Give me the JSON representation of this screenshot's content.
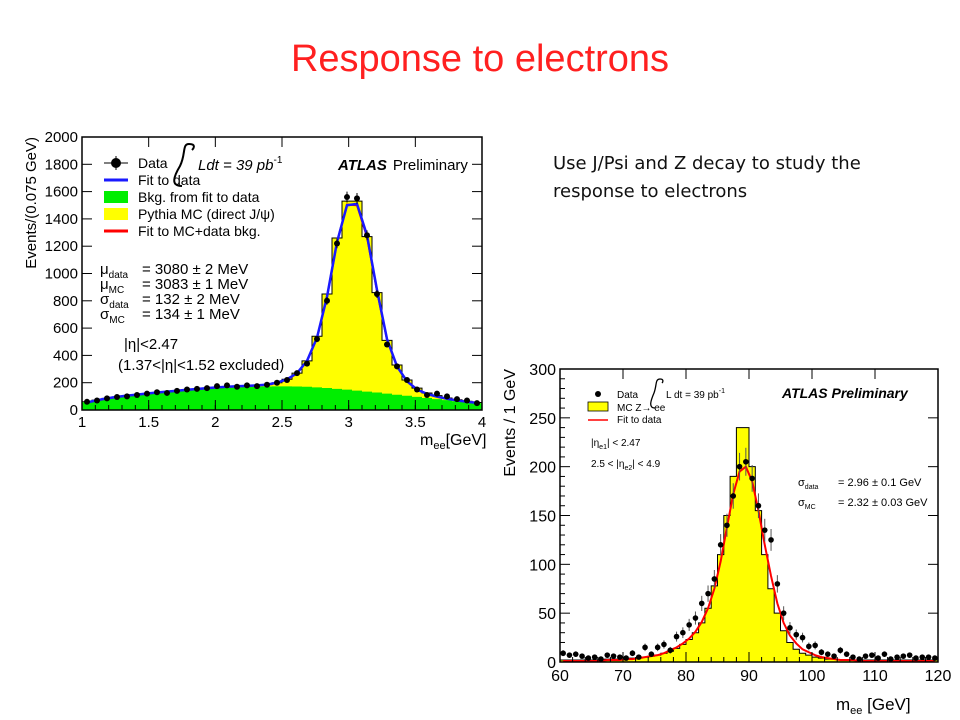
{
  "slide": {
    "title": "Response to electrons",
    "note": "Use J/Psi and Z decay to study the response to electrons"
  },
  "colors": {
    "title": "#ff2020",
    "data_fit": "#1a1aff",
    "background_fill": "#00ee00",
    "mc_fill": "#ffff00",
    "mc_fit": "#ff0000"
  },
  "chart_data": [
    {
      "type": "histogram",
      "experiment": "ATLAS",
      "experiment_tag": "Preliminary",
      "xlabel": "m",
      "xlabel_sub": "ee",
      "xlabel_unit": "[GeV]",
      "ylabel": "Events/(0.075 GeV)",
      "xlim": [
        1,
        4
      ],
      "ylim": [
        0,
        2000
      ],
      "xticks": [
        1,
        1.5,
        2,
        2.5,
        3,
        3.5,
        4
      ],
      "yticks": [
        0,
        200,
        400,
        600,
        800,
        1000,
        1200,
        1400,
        1600,
        1800,
        2000
      ],
      "lumi_text": "Ldt = 39 pb",
      "lumi_sup": "-1",
      "legend_position": "top-left",
      "legend": [
        "Data",
        "Fit to data",
        "Bkg. from fit to data",
        "Pythia MC (direct J/ψ)",
        "Fit to MC+data bkg."
      ],
      "annotations": [
        {
          "sym": "μ",
          "sub": "data",
          "text": "= 3080 ± 2 MeV"
        },
        {
          "sym": "μ",
          "sub": "MC",
          "text": "= 3083 ± 1 MeV"
        },
        {
          "sym": "σ",
          "sub": "data",
          "text": "= 132 ± 2 MeV"
        },
        {
          "sym": "σ",
          "sub": "MC",
          "text": "= 134 ± 1 MeV"
        }
      ],
      "cuts": [
        "|η|<2.47",
        "(1.37<|η|<1.52 excluded)"
      ],
      "x": [
        1.0375,
        1.1125,
        1.1875,
        1.2625,
        1.3375,
        1.4125,
        1.4875,
        1.5625,
        1.6375,
        1.7125,
        1.7875,
        1.8625,
        1.9375,
        2.0125,
        2.0875,
        2.1625,
        2.2375,
        2.3125,
        2.3875,
        2.4625,
        2.5375,
        2.6125,
        2.6875,
        2.7625,
        2.8375,
        2.9125,
        2.9875,
        3.0625,
        3.1375,
        3.2125,
        3.2875,
        3.3625,
        3.4375,
        3.5125,
        3.5875,
        3.6625,
        3.7375,
        3.8125,
        3.8875,
        3.9625
      ],
      "data": [
        60,
        70,
        85,
        95,
        100,
        110,
        120,
        130,
        125,
        140,
        150,
        155,
        160,
        175,
        180,
        170,
        180,
        175,
        185,
        200,
        220,
        270,
        340,
        520,
        800,
        1220,
        1560,
        1550,
        1280,
        850,
        480,
        320,
        220,
        150,
        110,
        120,
        100,
        80,
        70,
        50
      ],
      "fit_data": [
        55,
        72,
        85,
        96,
        105,
        113,
        121,
        128,
        135,
        141,
        148,
        154,
        160,
        166,
        170,
        174,
        177,
        180,
        186,
        200,
        225,
        270,
        360,
        530,
        830,
        1230,
        1500,
        1510,
        1280,
        880,
        520,
        320,
        210,
        150,
        118,
        98,
        82,
        70,
        60,
        52
      ],
      "background": [
        58,
        72,
        85,
        96,
        105,
        113,
        121,
        128,
        135,
        141,
        147,
        152,
        157,
        161,
        164,
        167,
        169,
        171,
        172,
        173,
        173,
        172,
        170,
        166,
        161,
        155,
        149,
        142,
        135,
        128,
        120,
        112,
        104,
        96,
        88,
        80,
        72,
        64,
        57,
        50
      ],
      "mc": [
        60,
        72,
        85,
        96,
        105,
        113,
        121,
        128,
        135,
        141,
        148,
        154,
        160,
        166,
        170,
        174,
        177,
        180,
        186,
        200,
        225,
        270,
        360,
        540,
        850,
        1260,
        1530,
        1530,
        1270,
        860,
        510,
        330,
        220,
        160,
        125,
        105,
        88,
        75,
        64,
        55
      ],
      "fit_mc": [
        55,
        70,
        84,
        95,
        104,
        112,
        120,
        127,
        134,
        140,
        147,
        153,
        159,
        165,
        169,
        173,
        176,
        179,
        185,
        199,
        223,
        268,
        356,
        528,
        826,
        1228,
        1505,
        1500,
        1268,
        872,
        515,
        318,
        212,
        152,
        118,
        99,
        83,
        71,
        61,
        53
      ]
    },
    {
      "type": "histogram",
      "experiment": "ATLAS Preliminary",
      "xlabel": "m",
      "xlabel_sub": "ee",
      "xlabel_unit": " [GeV]",
      "ylabel": "Events / 1 GeV",
      "xlim": [
        60,
        120
      ],
      "ylim": [
        0,
        300
      ],
      "xticks": [
        60,
        70,
        80,
        90,
        100,
        110,
        120
      ],
      "yticks": [
        0,
        50,
        100,
        150,
        200,
        250,
        300
      ],
      "lumi_text": "L dt = 39 pb",
      "lumi_sup": "-1",
      "legend_position": "top-left",
      "legend": [
        "Data",
        "MC Z→ ee",
        "Fit to data"
      ],
      "cuts": [
        {
          "pre": "|η",
          "sub": "e1",
          "post": "| < 2.47"
        },
        {
          "pre": "2.5 < |η",
          "sub": "e2",
          "post": "| < 4.9"
        }
      ],
      "annotations": [
        {
          "sym": "σ",
          "sub": "data",
          "text": "= 2.96 ± 0.1 GeV"
        },
        {
          "sym": "σ",
          "sub": "MC",
          "text": "= 2.32 ± 0.03 GeV"
        }
      ],
      "x": [
        60.5,
        61.5,
        62.5,
        63.5,
        64.5,
        65.5,
        66.5,
        67.5,
        68.5,
        69.5,
        70.5,
        71.5,
        72.5,
        73.5,
        74.5,
        75.5,
        76.5,
        77.5,
        78.5,
        79.5,
        80.5,
        81.5,
        82.5,
        83.5,
        84.5,
        85.5,
        86.5,
        87.5,
        88.5,
        89.5,
        90.5,
        91.5,
        92.5,
        93.5,
        94.5,
        95.5,
        96.5,
        97.5,
        98.5,
        99.5,
        100.5,
        101.5,
        102.5,
        103.5,
        104.5,
        105.5,
        106.5,
        107.5,
        108.5,
        109.5,
        110.5,
        111.5,
        112.5,
        113.5,
        114.5,
        115.5,
        116.5,
        117.5,
        118.5,
        119.5
      ],
      "data": [
        9,
        7,
        8,
        6,
        4,
        5,
        3,
        7,
        6,
        5,
        4,
        9,
        5,
        15,
        8,
        15,
        18,
        12,
        26,
        30,
        38,
        45,
        60,
        70,
        85,
        120,
        140,
        170,
        200,
        205,
        188,
        160,
        135,
        125,
        80,
        50,
        35,
        28,
        25,
        16,
        17,
        10,
        8,
        6,
        12,
        8,
        5,
        3,
        6,
        7,
        4,
        8,
        3,
        5,
        6,
        7,
        4,
        5,
        5,
        4
      ],
      "mc": [
        2,
        2,
        2,
        2,
        2,
        2,
        2,
        3,
        3,
        3,
        3,
        4,
        4,
        5,
        6,
        7,
        9,
        11,
        14,
        18,
        23,
        30,
        40,
        55,
        78,
        110,
        150,
        190,
        240,
        240,
        200,
        155,
        110,
        75,
        50,
        32,
        20,
        13,
        9,
        7,
        5,
        4,
        3,
        3,
        2,
        2,
        2,
        2,
        2,
        2,
        2,
        2,
        2,
        2,
        2,
        2,
        2,
        2,
        2,
        2
      ],
      "fit_data": [
        1,
        1,
        1,
        1,
        1,
        1,
        1,
        2,
        2,
        2,
        3,
        3,
        4,
        5,
        6,
        7,
        9,
        12,
        15,
        19,
        24,
        31,
        41,
        55,
        75,
        103,
        138,
        172,
        195,
        200,
        185,
        155,
        120,
        88,
        60,
        40,
        27,
        19,
        13,
        10,
        7,
        5,
        4,
        3,
        2,
        2,
        2,
        1,
        1,
        1,
        1,
        1,
        1,
        1,
        1,
        1,
        1,
        1,
        1,
        1
      ]
    }
  ]
}
